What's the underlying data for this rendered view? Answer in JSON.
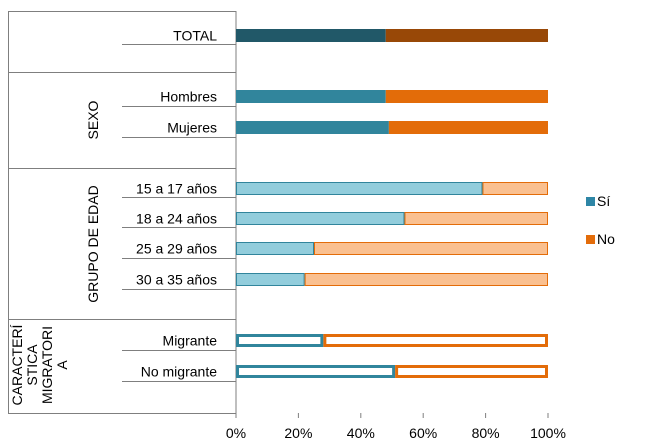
{
  "chart_data": {
    "type": "bar",
    "orientation": "horizontal",
    "stacked": "100%",
    "xlim": [
      0,
      100
    ],
    "x_ticks": [
      "0%",
      "20%",
      "40%",
      "60%",
      "80%",
      "100%"
    ],
    "grid": false,
    "legend_position": "right",
    "legend": [
      {
        "label": "Sí",
        "color": "#2E86A6"
      },
      {
        "label": "No",
        "color": "#E36C0A"
      }
    ],
    "groups": [
      {
        "name": "",
        "categories": [
          "TOTAL"
        ]
      },
      {
        "name": "SEXO",
        "categories": [
          "Hombres",
          "Mujeres"
        ]
      },
      {
        "name": "GRUPO DE EDAD",
        "categories": [
          "15 a 17 años",
          "18 a 24 años",
          "25 a 29 años",
          "30 a 35 años"
        ]
      },
      {
        "name": "CARACTERÍSTICA MIGRATORIA",
        "name_lines": [
          "CARACTERÍ",
          "STICA",
          "MIGRATORI",
          "A"
        ],
        "categories": [
          "Migrante",
          "No migrante"
        ]
      }
    ],
    "bars": [
      {
        "category": "TOTAL",
        "si": 48,
        "no": 52,
        "si_color": "#215868",
        "no_color": "#984807",
        "style": "solid"
      },
      {
        "category": "Hombres",
        "si": 48,
        "no": 52,
        "si_color": "#31859C",
        "no_color": "#E36C09",
        "style": "solid"
      },
      {
        "category": "Mujeres",
        "si": 49,
        "no": 51,
        "si_color": "#31859C",
        "no_color": "#E36C09",
        "style": "solid"
      },
      {
        "category": "15 a 17 años",
        "si": 79,
        "no": 21,
        "si_color": "#92CDDC",
        "no_color": "#FAC090",
        "style": "light"
      },
      {
        "category": "18 a 24 años",
        "si": 54,
        "no": 46,
        "si_color": "#92CDDC",
        "no_color": "#FAC090",
        "style": "light"
      },
      {
        "category": "25 a 29 años",
        "si": 25,
        "no": 75,
        "si_color": "#92CDDC",
        "no_color": "#FAC090",
        "style": "light"
      },
      {
        "category": "30 a 35 años",
        "si": 22,
        "no": 78,
        "si_color": "#92CDDC",
        "no_color": "#FAC090",
        "style": "light"
      },
      {
        "category": "Migrante",
        "si": 28,
        "no": 72,
        "si_color": "#31859C",
        "no_color": "#E36C09",
        "style": "outline"
      },
      {
        "category": "No migrante",
        "si": 51,
        "no": 49,
        "si_color": "#31859C",
        "no_color": "#E36C09",
        "style": "outline"
      }
    ]
  }
}
